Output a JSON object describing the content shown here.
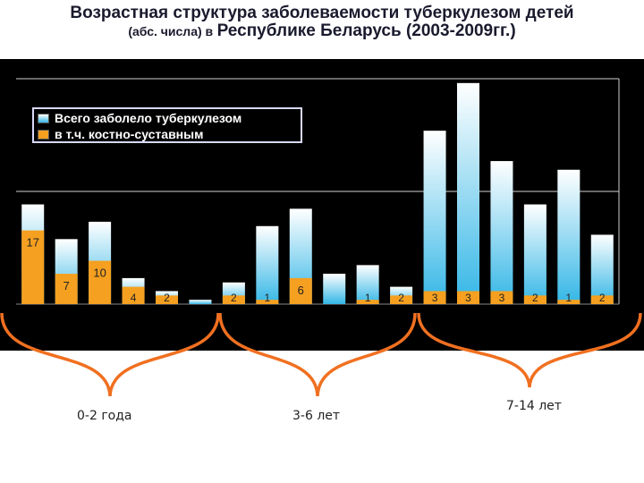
{
  "title": {
    "line1": "Возрастная структура заболеваемости туберкулезом детей",
    "line2_prefix": "(абс. числа) в",
    "line2_main": "Республике Беларусь (2003-2009гг.)"
  },
  "legend": {
    "total_label": "Всего заболело туберкулезом",
    "bone_label": "в т.ч. костно-суставным"
  },
  "colors": {
    "total_top": "#ffffff",
    "total_bottom": "#33b6e6",
    "bone": "#f5a020",
    "background": "#000000",
    "brace": "#f07020",
    "gridline": "#d0d0d0"
  },
  "age_groups": [
    {
      "label": "0-2 года"
    },
    {
      "label": "3-6 лет"
    },
    {
      "label": "7-14 лет"
    }
  ],
  "chart_data": {
    "type": "bar",
    "categories": [
      "",
      "",
      "",
      "",
      "",
      "",
      "",
      "",
      "",
      "",
      "",
      "",
      "",
      "",
      "",
      "",
      "",
      ""
    ],
    "series": [
      {
        "name": "Всего заболело туберкулезом",
        "values": [
          23,
          15,
          19,
          6,
          3,
          1,
          5,
          18,
          22,
          7,
          9,
          4,
          40,
          51,
          33,
          23,
          31,
          16
        ]
      },
      {
        "name": "в т.ч. костно-суставным",
        "values": [
          17,
          7,
          10,
          4,
          2,
          null,
          2,
          1,
          6,
          null,
          1,
          2,
          3,
          3,
          3,
          2,
          1,
          2
        ]
      }
    ],
    "data_labels": [
      "17",
      "7",
      "10",
      "4",
      "2",
      "",
      "2",
      "1",
      "6",
      "",
      "1",
      "2",
      "3",
      "3",
      "3",
      "2",
      "1",
      "2"
    ],
    "ylim": [
      0,
      52
    ],
    "grid": true,
    "legend_position": "top-left"
  }
}
